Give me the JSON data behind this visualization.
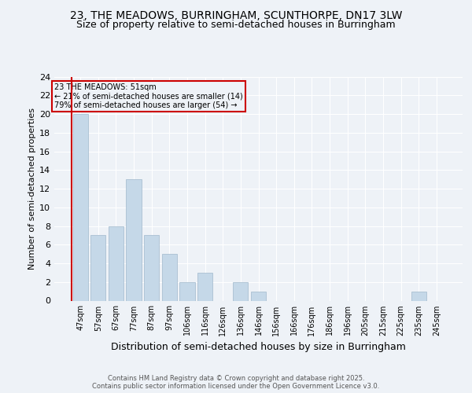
{
  "title1": "23, THE MEADOWS, BURRINGHAM, SCUNTHORPE, DN17 3LW",
  "title2": "Size of property relative to semi-detached houses in Burringham",
  "xlabel": "Distribution of semi-detached houses by size in Burringham",
  "ylabel": "Number of semi-detached properties",
  "categories": [
    "47sqm",
    "57sqm",
    "67sqm",
    "77sqm",
    "87sqm",
    "97sqm",
    "106sqm",
    "116sqm",
    "126sqm",
    "136sqm",
    "146sqm",
    "156sqm",
    "166sqm",
    "176sqm",
    "186sqm",
    "196sqm",
    "205sqm",
    "215sqm",
    "225sqm",
    "235sqm",
    "245sqm"
  ],
  "values": [
    20,
    7,
    8,
    13,
    7,
    5,
    2,
    3,
    0,
    2,
    1,
    0,
    0,
    0,
    0,
    0,
    0,
    0,
    0,
    1,
    0
  ],
  "bar_color": "#c5d8e8",
  "bar_edge_color": "#a0b8cc",
  "annotation_text": "23 THE MEADOWS: 51sqm\n← 21% of semi-detached houses are smaller (14)\n79% of semi-detached houses are larger (54) →",
  "ylim": [
    0,
    24
  ],
  "yticks": [
    0,
    2,
    4,
    6,
    8,
    10,
    12,
    14,
    16,
    18,
    20,
    22,
    24
  ],
  "footer": "Contains HM Land Registry data © Crown copyright and database right 2025.\nContains public sector information licensed under the Open Government Licence v3.0.",
  "background_color": "#eef2f7",
  "grid_color": "#ffffff",
  "title_fontsize": 10,
  "subtitle_fontsize": 9,
  "tick_fontsize": 7,
  "ylabel_fontsize": 8,
  "xlabel_fontsize": 9,
  "footer_fontsize": 6
}
